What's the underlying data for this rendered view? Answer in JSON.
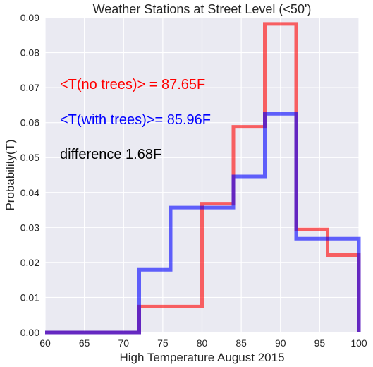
{
  "chart_data": {
    "type": "histogram",
    "title": "Weather Stations at Street Level (<50')",
    "xlabel": "High Temperature August 2015",
    "ylabel": "Probability(T)",
    "xlim": [
      60,
      100
    ],
    "ylim": [
      0,
      0.09
    ],
    "xticks": [
      "60",
      "65",
      "70",
      "75",
      "80",
      "85",
      "90",
      "95",
      "100"
    ],
    "yticks": [
      "0.00",
      "0.01",
      "0.02",
      "0.03",
      "0.04",
      "0.05",
      "0.06",
      "0.07",
      "0.08",
      "0.09"
    ],
    "grid": true,
    "bin_edges": [
      60,
      72,
      76,
      80,
      84,
      88,
      92,
      96,
      100
    ],
    "series": [
      {
        "color": "#ff0000",
        "bin_edges": [
          60,
          72,
          80,
          84,
          88,
          92,
          96,
          100
        ],
        "values": [
          0.0,
          0.0074,
          0.0368,
          0.0588,
          0.0882,
          0.0294,
          0.0221
        ]
      },
      {
        "color": "#0000ff",
        "bin_edges": [
          60,
          72,
          76,
          84,
          88,
          92,
          100
        ],
        "values": [
          0.0,
          0.0179,
          0.0357,
          0.0446,
          0.0625,
          0.0268
        ]
      }
    ],
    "annotations": [
      {
        "text": "<T(no trees)> = 87.65F",
        "color": "#ff0000"
      },
      {
        "text": "<T(with trees)>= 85.96F",
        "color": "#0000ff"
      },
      {
        "text": "difference  1.68F",
        "color": "#000000"
      }
    ]
  }
}
